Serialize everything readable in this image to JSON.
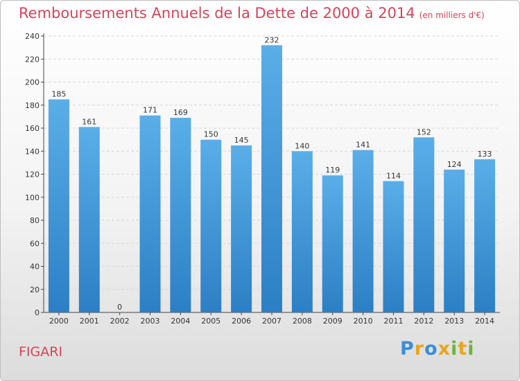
{
  "header": {
    "title": "Remboursements Annuels de la Dette de 2000 à 2014",
    "unit": "(en milliers d'€)"
  },
  "footer": {
    "city": "FIGARI",
    "brand_letters": [
      "P",
      "r",
      "o",
      "x",
      "i",
      "t",
      "i"
    ],
    "brand_colors": [
      "#3a8fd6",
      "#e8a51e",
      "#3a8fd6",
      "#e8a51e",
      "#6cb43f",
      "#e8a51e",
      "#6cb43f"
    ]
  },
  "chart_data": {
    "type": "bar",
    "title": "Remboursements Annuels de la Dette de 2000 à 2014",
    "xlabel": "",
    "ylabel": "",
    "categories": [
      "2000",
      "2001",
      "2002",
      "2003",
      "2004",
      "2005",
      "2006",
      "2007",
      "2008",
      "2009",
      "2010",
      "2011",
      "2012",
      "2013",
      "2014"
    ],
    "values": [
      185,
      161,
      0,
      171,
      169,
      150,
      145,
      232,
      140,
      119,
      141,
      114,
      152,
      124,
      133
    ],
    "ylim": [
      0,
      240
    ],
    "yticks": [
      0,
      20,
      40,
      60,
      80,
      100,
      120,
      140,
      160,
      180,
      200,
      220,
      240
    ],
    "grid": true,
    "bar_color_top": "#5aaee8",
    "bar_color_bottom": "#2c7fc4",
    "legend": "none"
  }
}
